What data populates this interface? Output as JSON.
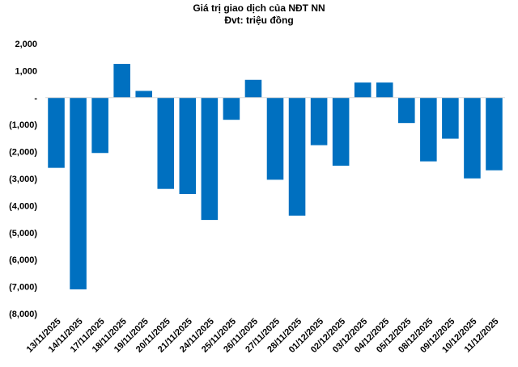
{
  "chart_data": {
    "type": "bar",
    "title": "Giá trị giao dịch của NĐT NN",
    "subtitle": "Đvt: triệu đồng",
    "xlabel": "",
    "ylabel": "",
    "ylim": [
      -8000,
      2000
    ],
    "yticks": [
      2000,
      1000,
      0,
      -1000,
      -2000,
      -3000,
      -4000,
      -5000,
      -6000,
      -7000,
      -8000
    ],
    "ytick_labels": [
      "2,000",
      "1,000",
      "-",
      "(1,000)",
      "(2,000)",
      "(3,000)",
      "(4,000)",
      "(5,000)",
      "(6,000)",
      "(7,000)",
      "(8,000)"
    ],
    "grid": false,
    "legend": "none",
    "bar_color": "#0070C0",
    "categories": [
      "13/11/2025",
      "14/11/2025",
      "17/11/2025",
      "18/11/2025",
      "19/11/2025",
      "20/11/2025",
      "21/11/2025",
      "24/11/2025",
      "25/11/2025",
      "26/11/2025",
      "27/11/2025",
      "28/11/2025",
      "01/12/2025",
      "02/12/2025",
      "03/12/2025",
      "04/12/2025",
      "05/12/2025",
      "08/12/2025",
      "09/12/2025",
      "10/12/2025",
      "11/12/2025"
    ],
    "values": [
      -2600,
      -7100,
      -2050,
      1250,
      250,
      -3380,
      -3570,
      -4530,
      -820,
      660,
      -3040,
      -4370,
      -1760,
      -2520,
      560,
      560,
      -940,
      -2360,
      -1520,
      -2990,
      -2690
    ]
  }
}
